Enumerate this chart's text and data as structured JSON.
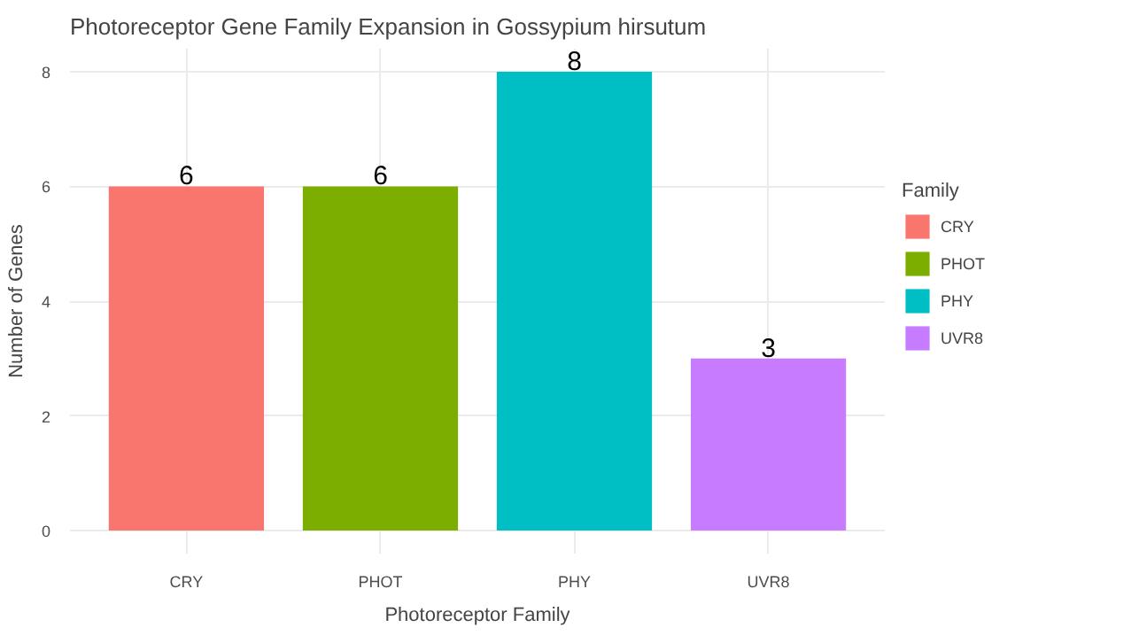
{
  "chart_data": {
    "type": "bar",
    "title": "Photoreceptor Gene Family Expansion in Gossypium hirsutum",
    "xlabel": "Photoreceptor Family",
    "ylabel": "Number of Genes",
    "legend_title": "Family",
    "categories": [
      "CRY",
      "PHOT",
      "PHY",
      "UVR8"
    ],
    "series": [
      {
        "name": "CRY",
        "color": "#f8766d",
        "values": [
          6,
          null,
          null,
          null
        ]
      },
      {
        "name": "PHOT",
        "color": "#7cae00",
        "values": [
          null,
          6,
          null,
          null
        ]
      },
      {
        "name": "PHY",
        "color": "#00bfc4",
        "values": [
          null,
          null,
          8,
          null
        ]
      },
      {
        "name": "UVR8",
        "color": "#c77cff",
        "values": [
          null,
          null,
          null,
          3
        ]
      }
    ],
    "ylim": [
      -0.4,
      8.4
    ],
    "yticks": [
      0,
      2,
      4,
      6,
      8
    ],
    "grid": true,
    "legend": "right",
    "data_labels": true
  }
}
